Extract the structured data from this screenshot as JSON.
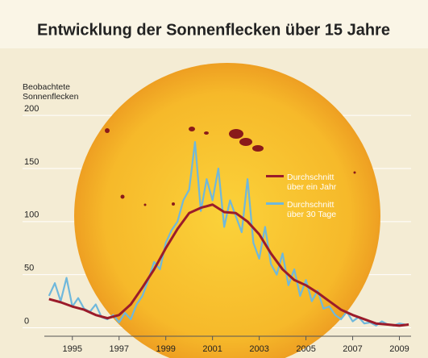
{
  "chart_data": {
    "type": "line",
    "title": "Entwicklung der Sonnenflecken über 15 Jahre",
    "y_label": "Beobachtete Sonnenflecken",
    "xlim": [
      1993.8,
      2009.5
    ],
    "xticks": [
      1995,
      1997,
      1999,
      2001,
      2003,
      2005,
      2007,
      2009
    ],
    "ylim": [
      -8,
      210
    ],
    "yticks": [
      0,
      50,
      100,
      150,
      200
    ],
    "grid": true,
    "legend": "right",
    "series": [
      {
        "name": "Durchschnitt über ein Jahr",
        "color": "#9b1b2a",
        "x": [
          1994.0,
          1994.5,
          1995.0,
          1995.5,
          1996.0,
          1996.5,
          1997.0,
          1997.5,
          1998.0,
          1998.5,
          1999.0,
          1999.5,
          2000.0,
          2000.5,
          2001.0,
          2001.5,
          2002.0,
          2002.5,
          2003.0,
          2003.5,
          2004.0,
          2004.5,
          2005.0,
          2005.5,
          2006.0,
          2006.5,
          2007.0,
          2007.5,
          2008.0,
          2008.5,
          2009.0,
          2009.4
        ],
        "values": [
          27,
          24,
          20,
          17,
          12,
          9,
          12,
          22,
          38,
          55,
          75,
          93,
          108,
          113,
          116,
          109,
          108,
          100,
          88,
          70,
          55,
          45,
          40,
          33,
          25,
          17,
          12,
          8,
          4,
          3,
          2,
          3
        ]
      },
      {
        "name": "Durchschnitt über 30 Tage",
        "color": "#6fb8dc",
        "x": [
          1994.0,
          1994.25,
          1994.5,
          1994.75,
          1995.0,
          1995.25,
          1995.5,
          1995.75,
          1996.0,
          1996.25,
          1996.5,
          1996.75,
          1997.0,
          1997.25,
          1997.5,
          1997.75,
          1998.0,
          1998.25,
          1998.5,
          1998.75,
          1999.0,
          1999.25,
          1999.5,
          1999.75,
          2000.0,
          2000.25,
          2000.5,
          2000.75,
          2001.0,
          2001.25,
          2001.5,
          2001.75,
          2002.0,
          2002.25,
          2002.5,
          2002.75,
          2003.0,
          2003.25,
          2003.5,
          2003.75,
          2004.0,
          2004.25,
          2004.5,
          2004.75,
          2005.0,
          2005.25,
          2005.5,
          2005.75,
          2006.0,
          2006.25,
          2006.5,
          2006.75,
          2007.0,
          2007.25,
          2007.5,
          2007.75,
          2008.0,
          2008.25,
          2008.5,
          2008.75,
          2009.0,
          2009.25
        ],
        "values": [
          30,
          42,
          25,
          47,
          20,
          28,
          18,
          15,
          22,
          10,
          8,
          12,
          5,
          14,
          8,
          22,
          30,
          45,
          62,
          55,
          80,
          92,
          100,
          120,
          130,
          175,
          110,
          140,
          120,
          150,
          95,
          120,
          105,
          90,
          140,
          80,
          65,
          95,
          60,
          50,
          70,
          40,
          55,
          30,
          45,
          25,
          35,
          18,
          20,
          12,
          8,
          15,
          6,
          10,
          4,
          5,
          2,
          6,
          3,
          2,
          4,
          3
        ]
      }
    ]
  }
}
